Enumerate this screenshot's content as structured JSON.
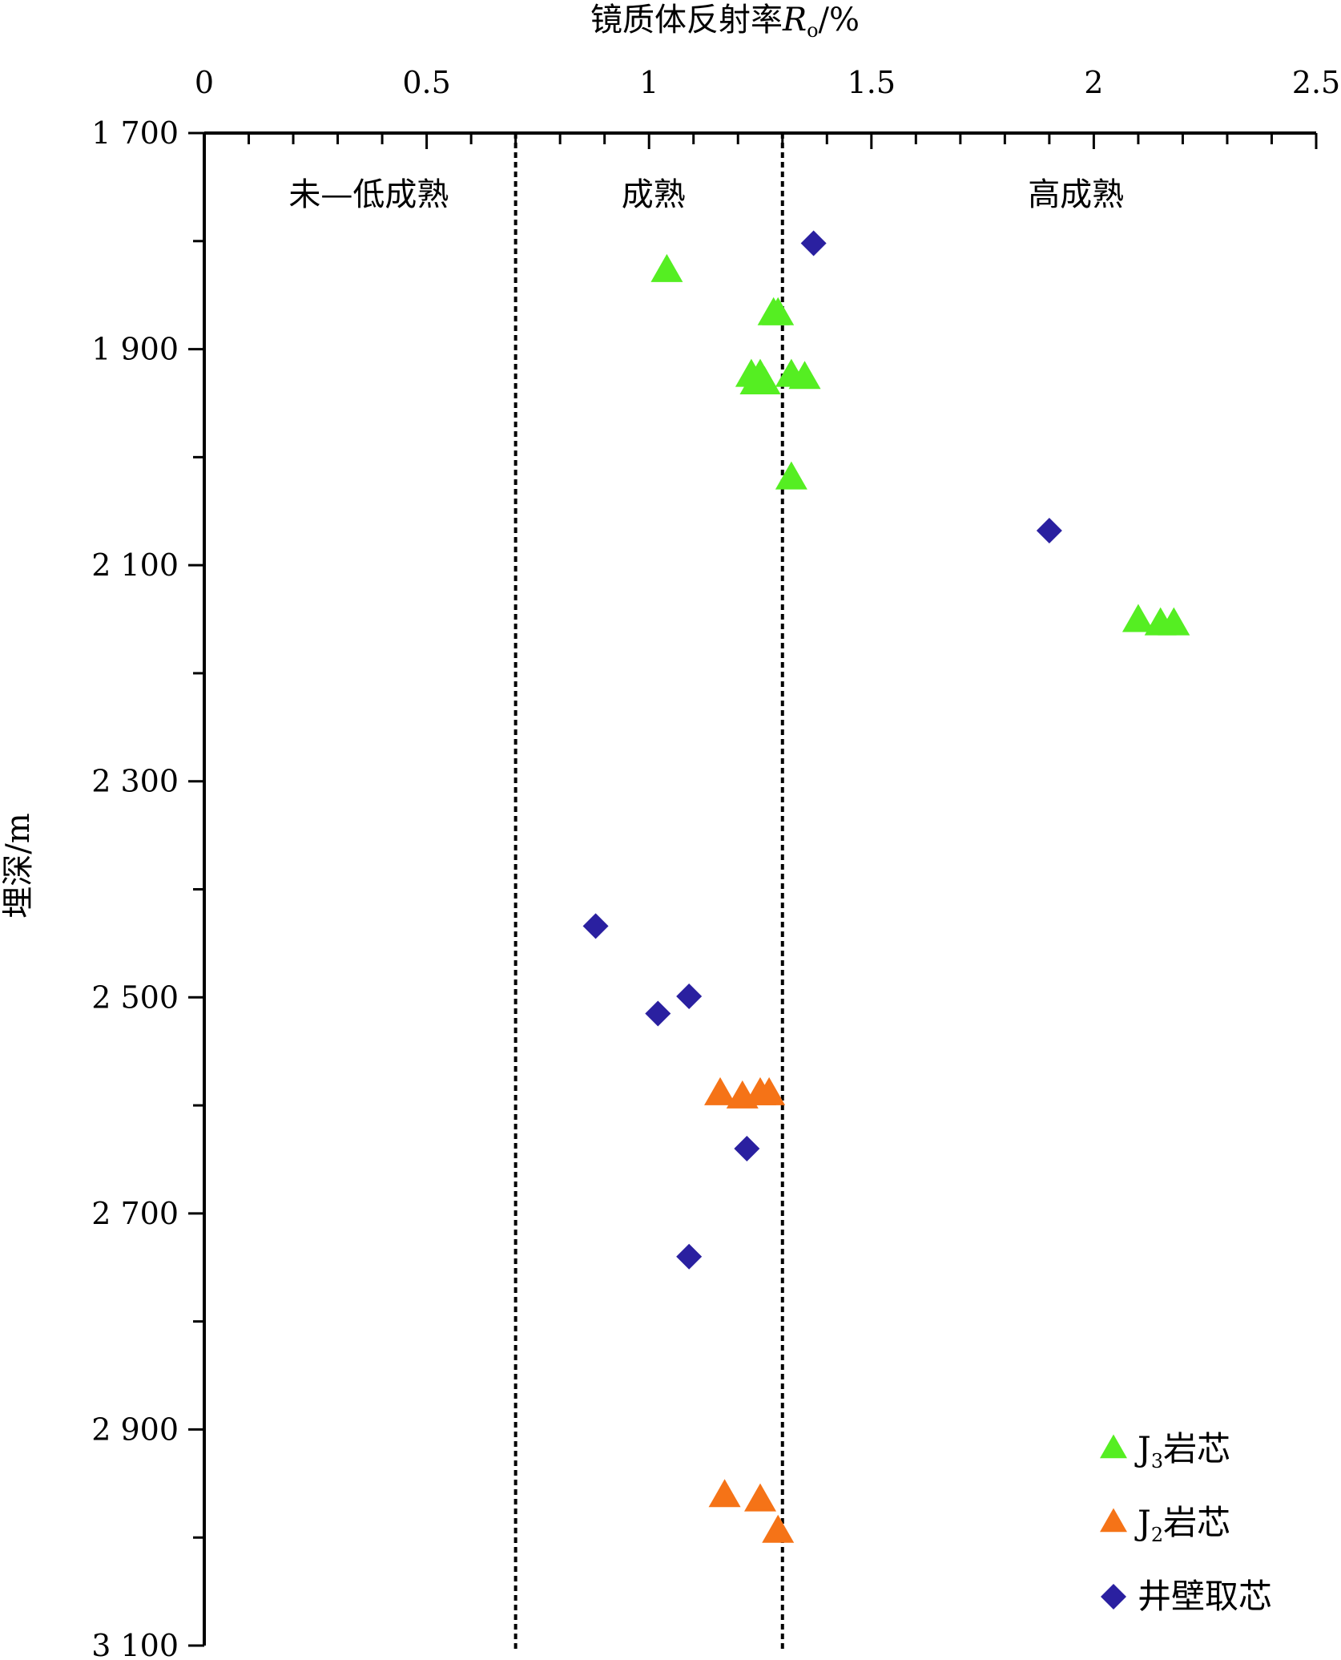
{
  "chart_data": {
    "type": "scatter",
    "title": "",
    "xlabel": "镜质体反射率",
    "xlabel_symbol": "R",
    "xlabel_subscript": "o",
    "xlabel_unit": "/%",
    "ylabel": "埋深/m",
    "xlim": [
      0,
      2.5
    ],
    "ylim": [
      1700,
      3100
    ],
    "y_inverted": true,
    "x_axis_position": "top",
    "x_ticks": [
      0,
      0.5,
      1,
      1.5,
      2,
      2.5
    ],
    "x_tick_labels": [
      "0",
      "0.5",
      "1",
      "1.5",
      "2",
      "2.5"
    ],
    "y_ticks": [
      1700,
      1900,
      2100,
      2300,
      2500,
      2700,
      2900,
      3100
    ],
    "y_tick_labels": [
      "1 700",
      "1 900",
      "2 100",
      "2 300",
      "2 500",
      "2 700",
      "2 900",
      "3 100"
    ],
    "grid": false,
    "legend_position": "bottom-right",
    "boundaries": [
      {
        "x": 0.7,
        "style": "dashed"
      },
      {
        "x": 1.3,
        "style": "dashed"
      }
    ],
    "zones": [
      {
        "label": "未—低成熟",
        "x_center": 0.37
      },
      {
        "label": "成熟",
        "x_center": 1.01
      },
      {
        "label": "高成熟",
        "x_center": 1.96
      }
    ],
    "series": [
      {
        "name": "J3岩芯",
        "name_base": "J",
        "name_sub": "3",
        "name_rest": "岩芯",
        "marker": "triangle",
        "color": "#55ee22",
        "points": [
          {
            "x": 1.04,
            "y": 1828
          },
          {
            "x": 1.28,
            "y": 1868
          },
          {
            "x": 1.29,
            "y": 1868
          },
          {
            "x": 1.23,
            "y": 1925
          },
          {
            "x": 1.25,
            "y": 1925
          },
          {
            "x": 1.32,
            "y": 1925
          },
          {
            "x": 1.35,
            "y": 1927
          },
          {
            "x": 1.24,
            "y": 1932
          },
          {
            "x": 1.26,
            "y": 1932
          },
          {
            "x": 1.32,
            "y": 2020
          },
          {
            "x": 2.1,
            "y": 2152
          },
          {
            "x": 2.15,
            "y": 2155
          },
          {
            "x": 2.18,
            "y": 2155
          }
        ]
      },
      {
        "name": "J2岩芯",
        "name_base": "J",
        "name_sub": "2",
        "name_rest": "岩芯",
        "marker": "triangle",
        "color": "#f57317",
        "points": [
          {
            "x": 1.16,
            "y": 2590
          },
          {
            "x": 1.21,
            "y": 2593
          },
          {
            "x": 1.25,
            "y": 2590
          },
          {
            "x": 1.27,
            "y": 2590
          },
          {
            "x": 1.17,
            "y": 2962
          },
          {
            "x": 1.25,
            "y": 2966
          },
          {
            "x": 1.29,
            "y": 2995
          }
        ]
      },
      {
        "name": "井壁取芯",
        "name_base": "井壁取芯",
        "name_sub": "",
        "name_rest": "",
        "marker": "diamond",
        "color": "#2a20a0",
        "points": [
          {
            "x": 1.37,
            "y": 1802
          },
          {
            "x": 1.9,
            "y": 2068
          },
          {
            "x": 0.88,
            "y": 2434
          },
          {
            "x": 1.09,
            "y": 2499
          },
          {
            "x": 1.02,
            "y": 2515
          },
          {
            "x": 1.22,
            "y": 2640
          },
          {
            "x": 1.09,
            "y": 2740
          }
        ]
      }
    ]
  }
}
